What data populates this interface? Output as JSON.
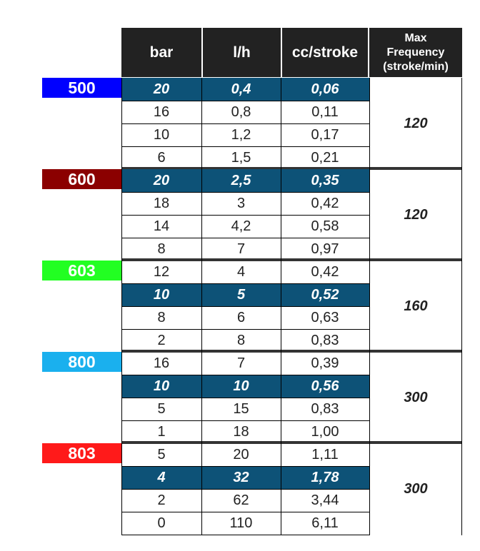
{
  "headers": {
    "bar": "bar",
    "lh": "l/h",
    "cc": "cc/stroke",
    "freq_line1": "Max",
    "freq_line2": "Frequency",
    "freq_line3": "(stroke/min)"
  },
  "colors": {
    "header_bg": "#222222",
    "highlight_bg": "#0d5277"
  },
  "groups": [
    {
      "label": "500",
      "color": "#0000ff",
      "freq": "120",
      "highlight": 0,
      "rows": [
        [
          "20",
          "0,4",
          "0,06"
        ],
        [
          "16",
          "0,8",
          "0,11"
        ],
        [
          "10",
          "1,2",
          "0,17"
        ],
        [
          "6",
          "1,5",
          "0,21"
        ]
      ]
    },
    {
      "label": "600",
      "color": "#8b0000",
      "freq": "120",
      "highlight": 0,
      "rows": [
        [
          "20",
          "2,5",
          "0,35"
        ],
        [
          "18",
          "3",
          "0,42"
        ],
        [
          "14",
          "4,2",
          "0,58"
        ],
        [
          "8",
          "7",
          "0,97"
        ]
      ]
    },
    {
      "label": "603",
      "color": "#22ff22",
      "freq": "160",
      "highlight": 1,
      "rows": [
        [
          "12",
          "4",
          "0,42"
        ],
        [
          "10",
          "5",
          "0,52"
        ],
        [
          "8",
          "6",
          "0,63"
        ],
        [
          "2",
          "8",
          "0,83"
        ]
      ]
    },
    {
      "label": "800",
      "color": "#1ab0ee",
      "freq": "300",
      "highlight": 1,
      "rows": [
        [
          "16",
          "7",
          "0,39"
        ],
        [
          "10",
          "10",
          "0,56"
        ],
        [
          "5",
          "15",
          "0,83"
        ],
        [
          "1",
          "18",
          "1,00"
        ]
      ]
    },
    {
      "label": "803",
      "color": "#ff1a1a",
      "freq": "300",
      "highlight": 1,
      "rows": [
        [
          "5",
          "20",
          "1,11"
        ],
        [
          "4",
          "32",
          "1,78"
        ],
        [
          "2",
          "62",
          "3,44"
        ],
        [
          "0",
          "110",
          "6,11"
        ]
      ]
    }
  ]
}
